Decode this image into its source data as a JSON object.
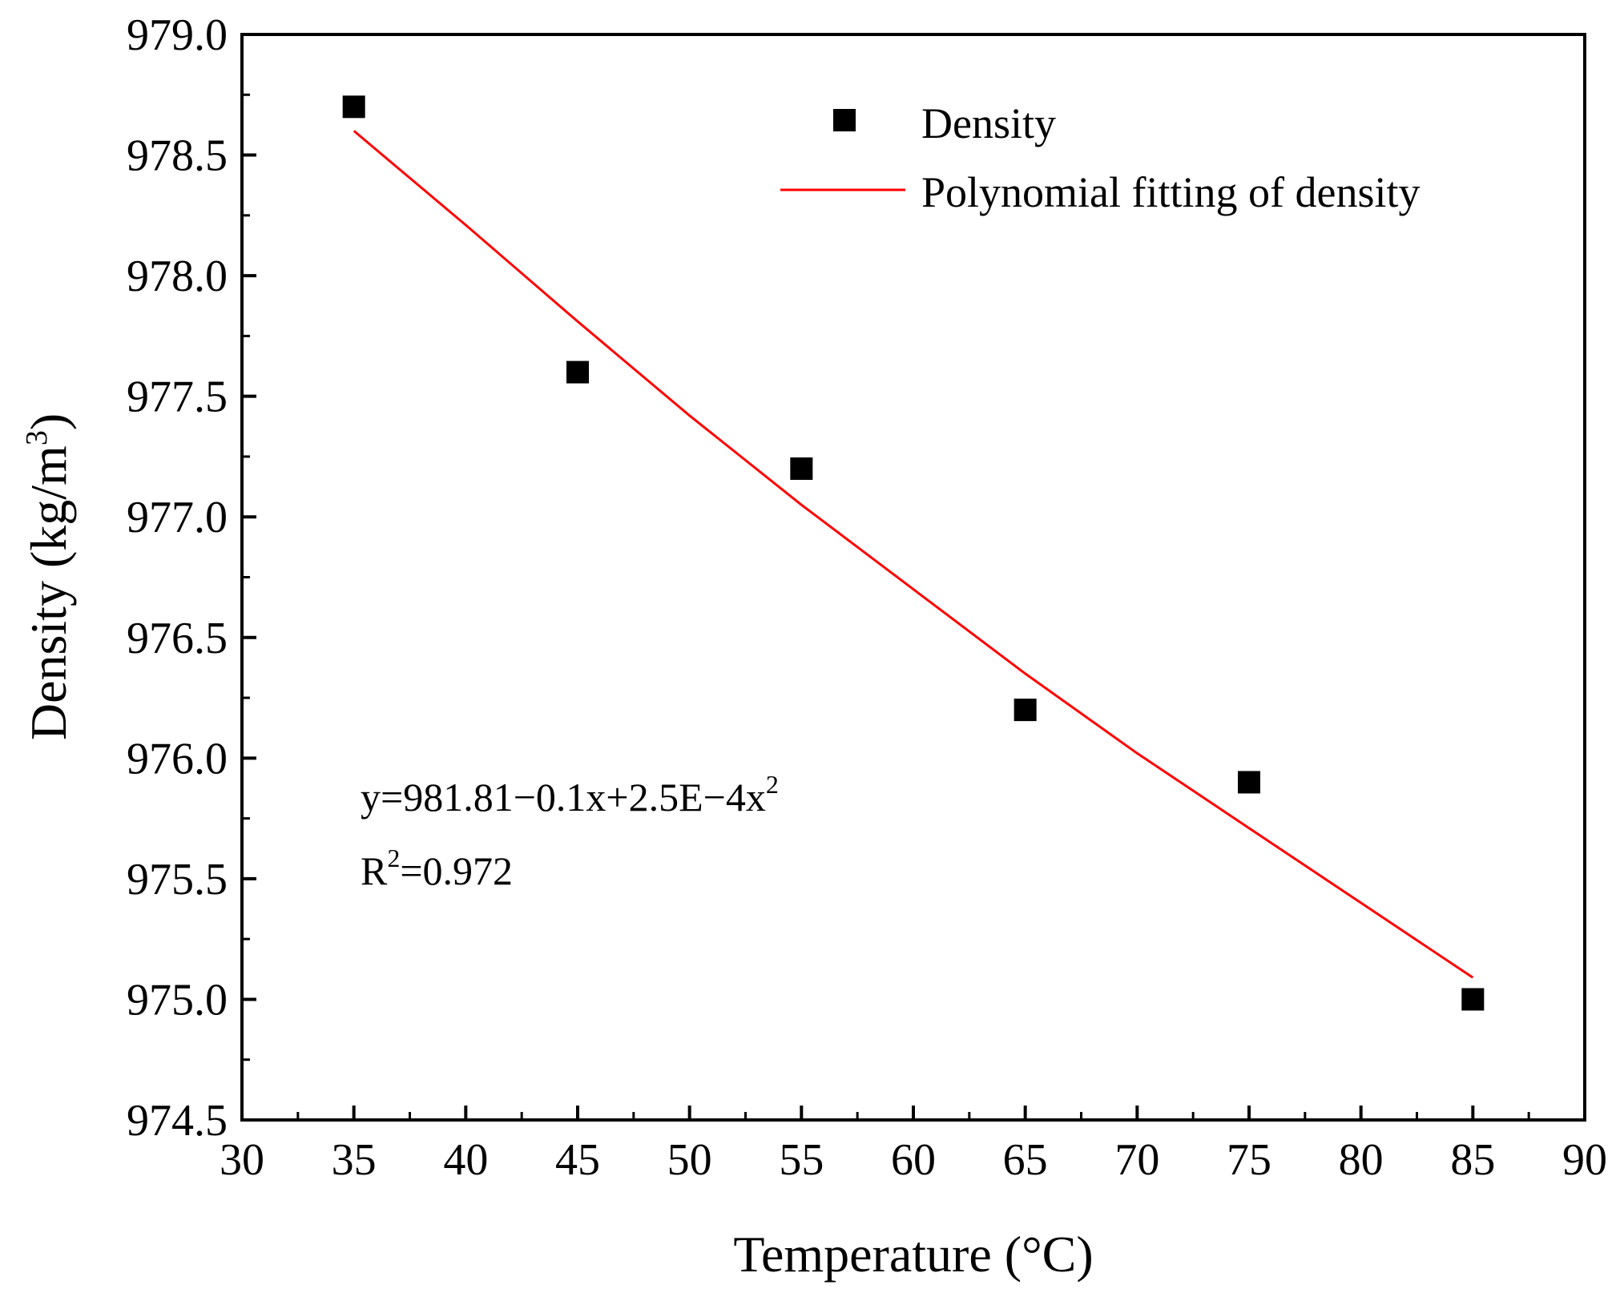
{
  "chart_data": {
    "type": "scatter",
    "title": "",
    "xlabel": "Temperature (°C)",
    "ylabel_main": "Density (kg/m",
    "ylabel_sup": "3",
    "ylabel_close": ")",
    "xlim": [
      30,
      90
    ],
    "ylim": [
      974.5,
      979.0
    ],
    "xticks": [
      30,
      35,
      40,
      45,
      50,
      55,
      60,
      65,
      70,
      75,
      80,
      85,
      90
    ],
    "xtick_labels": [
      "30",
      "35",
      "40",
      "45",
      "50",
      "55",
      "60",
      "65",
      "70",
      "75",
      "80",
      "85",
      "90"
    ],
    "yticks": [
      974.5,
      975.0,
      975.5,
      976.0,
      976.5,
      977.0,
      977.5,
      978.0,
      978.5,
      979.0
    ],
    "ytick_labels": [
      "974.5",
      "975.0",
      "975.5",
      "976.0",
      "976.5",
      "977.0",
      "977.5",
      "978.0",
      "978.5",
      "979.0"
    ],
    "series": [
      {
        "name": "Density",
        "kind": "scatter",
        "marker": "square",
        "color": "#000000",
        "x": [
          35,
          45,
          55,
          65,
          75,
          85
        ],
        "y": [
          978.7,
          977.6,
          977.2,
          976.2,
          975.9,
          975.0
        ]
      },
      {
        "name": "Polynomial fitting of density",
        "kind": "line",
        "color": "#ff0000",
        "x": [
          35,
          40,
          45,
          50,
          55,
          60,
          65,
          70,
          75,
          80,
          85
        ],
        "y": [
          978.6,
          978.21,
          977.81,
          977.42,
          977.05,
          976.7,
          976.35,
          976.02,
          975.71,
          975.4,
          975.09
        ]
      }
    ],
    "legend": {
      "position": "top-right",
      "entries": [
        "Density",
        "Polynomial fitting of density"
      ]
    },
    "annotations": {
      "equation_main": "y=981.81−0.1x+2.5E−4x",
      "equation_sup": "2",
      "r2_prefix": "R",
      "r2_sup": "2",
      "r2_rest": "=0.972"
    }
  }
}
